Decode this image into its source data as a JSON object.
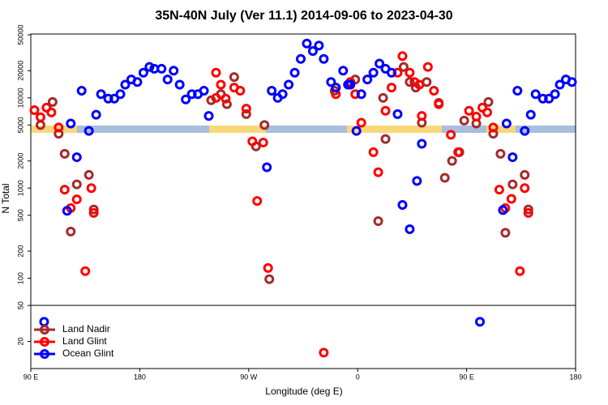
{
  "chart_data": {
    "type": "scatter",
    "title": "35N-40N July (Ver 11.1)   2014-09-06 to 2023-04-30",
    "x_label": "Longitude (deg E)",
    "y_label": "N Total",
    "xlim": [
      90,
      540
    ],
    "xticks": [
      {
        "value": 90,
        "label": "90 E"
      },
      {
        "value": 180,
        "label": "180"
      },
      {
        "value": 270,
        "label": "90 W"
      },
      {
        "value": 360,
        "label": "0"
      },
      {
        "value": 450,
        "label": "90 E"
      },
      {
        "value": 540,
        "label": "180"
      }
    ],
    "ylim": [
      10,
      51000
    ],
    "log_y": true,
    "yticks": [
      20,
      50,
      100,
      200,
      500,
      1000,
      2000,
      5000,
      10000,
      20000,
      50000
    ],
    "legend_position": "lower left",
    "series": [
      {
        "name": "Land Nadir",
        "color": "#a52a2a",
        "x": [
          98,
          108,
          113,
          118,
          123,
          128,
          138,
          142,
          239,
          247,
          252,
          258,
          268,
          276,
          283,
          287,
          341,
          358,
          377,
          381,
          383,
          398,
          403,
          408,
          413,
          417,
          427,
          432,
          438,
          444,
          448,
          458,
          468,
          472,
          478,
          482,
          488,
          498,
          501
        ],
        "values": [
          5000,
          9000,
          4000,
          2400,
          330,
          1100,
          1400,
          580,
          9400,
          11000,
          8500,
          17000,
          6600,
          2900,
          5000,
          98,
          12000,
          16000,
          430,
          10000,
          3500,
          22000,
          15000,
          13000,
          5300,
          15000,
          8800,
          1300,
          2000,
          2500,
          5600,
          5200,
          9000,
          4000,
          2400,
          320,
          1100,
          1400,
          580
        ]
      },
      {
        "name": "Land Glint",
        "color": "#ff0000",
        "x": [
          93,
          98,
          103,
          107,
          113,
          118,
          123,
          128,
          135,
          140,
          142,
          243,
          243,
          247,
          251,
          258,
          263,
          268,
          273,
          277,
          282,
          286,
          332,
          342,
          354,
          358,
          363,
          373,
          377,
          383,
          388,
          393,
          397,
          403,
          407,
          411,
          413,
          418,
          423,
          427,
          437,
          443,
          452,
          458,
          463,
          467,
          472,
          477,
          482,
          487,
          494,
          498,
          501
        ],
        "values": [
          7300,
          6100,
          7800,
          6900,
          4700,
          960,
          600,
          750,
          120,
          1000,
          530,
          19000,
          10000,
          14000,
          9800,
          13000,
          12000,
          7600,
          3300,
          720,
          3200,
          130,
          15,
          11000,
          15000,
          11000,
          5300,
          2500,
          1500,
          7200,
          13000,
          19000,
          29000,
          19000,
          15000,
          14000,
          6300,
          22000,
          12000,
          8500,
          3900,
          2500,
          7200,
          6200,
          7800,
          6900,
          4700,
          960,
          600,
          760,
          120,
          1000,
          530
        ]
      },
      {
        "name": "Ocean Glint",
        "color": "#0000ff",
        "x": [
          101,
          120,
          123,
          128,
          132,
          138,
          144,
          148,
          154,
          159,
          164,
          168,
          173,
          178,
          183,
          188,
          192,
          198,
          203,
          208,
          213,
          218,
          223,
          228,
          233,
          237,
          285,
          289,
          294,
          298,
          303,
          308,
          313,
          318,
          323,
          328,
          332,
          338,
          342,
          348,
          352,
          354,
          359,
          363,
          368,
          373,
          378,
          383,
          388,
          393,
          397,
          403,
          409,
          413,
          461,
          480,
          483,
          488,
          492,
          498,
          503,
          507,
          513,
          518,
          523,
          527,
          532,
          537
        ],
        "values": [
          33,
          560,
          5200,
          2200,
          12000,
          4300,
          6500,
          11000,
          9800,
          9800,
          11000,
          14000,
          16000,
          15000,
          19000,
          22000,
          21000,
          21000,
          16000,
          20000,
          14000,
          9600,
          11000,
          11000,
          12000,
          6300,
          1700,
          12000,
          10000,
          11000,
          14000,
          19000,
          27000,
          40000,
          33000,
          38000,
          27000,
          15000,
          13000,
          20000,
          14000,
          14000,
          4300,
          11000,
          16000,
          19000,
          24000,
          21000,
          19000,
          6600,
          650,
          350,
          1200,
          3100,
          33,
          570,
          5200,
          2200,
          12000,
          4300,
          6500,
          11000,
          9800,
          9800,
          11000,
          14000,
          16000,
          15000
        ]
      }
    ]
  }
}
